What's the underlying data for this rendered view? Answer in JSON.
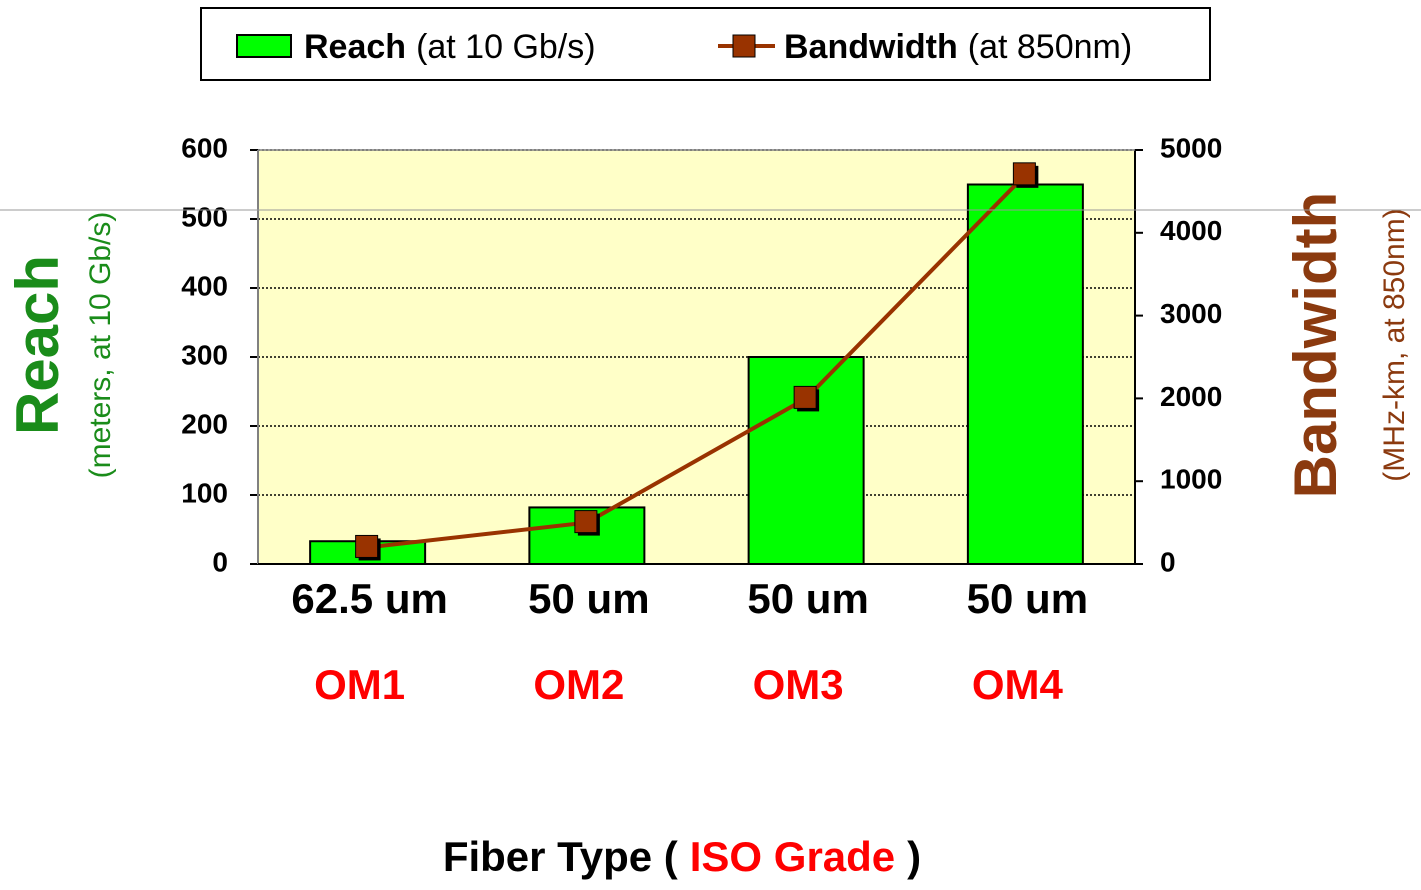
{
  "chart_data": {
    "type": "bar_line",
    "categories": [
      "62.5 um",
      "50 um",
      "50 um",
      "50 um"
    ],
    "grades": [
      "OM1",
      "OM2",
      "OM3",
      "OM4"
    ],
    "series": [
      {
        "name": "Reach",
        "name_note": "(at 10 Gb/s)",
        "type": "bar",
        "color": "#00ff00",
        "values": [
          33,
          82,
          300,
          550
        ]
      },
      {
        "name": "Bandwidth",
        "name_note": "(at 850nm)",
        "type": "line",
        "color": "#993300",
        "axis": "y2",
        "values": [
          200,
          500,
          2000,
          4700
        ]
      }
    ],
    "ylim": [
      0,
      600
    ],
    "yticks": [
      0,
      100,
      200,
      300,
      400,
      500,
      600
    ],
    "y2lim": [
      0,
      5000
    ],
    "y2ticks": [
      0,
      1000,
      2000,
      3000,
      4000,
      5000
    ],
    "y_label": {
      "title": "Reach",
      "note": "(meters, at 10 Gb/s)",
      "color": "#1a8c1a"
    },
    "y2_label": {
      "title": "Bandwidth",
      "note": "(MHz-km, at 850nm)",
      "color": "#8b3a0f"
    },
    "x_label": {
      "start": "Fiber Type (",
      "highlight": "ISO Grade",
      "end": ")",
      "highlight_color": "#ff0000"
    },
    "grade_color": "#ff0000",
    "plot_background": "#ffffc8",
    "grid": true
  }
}
